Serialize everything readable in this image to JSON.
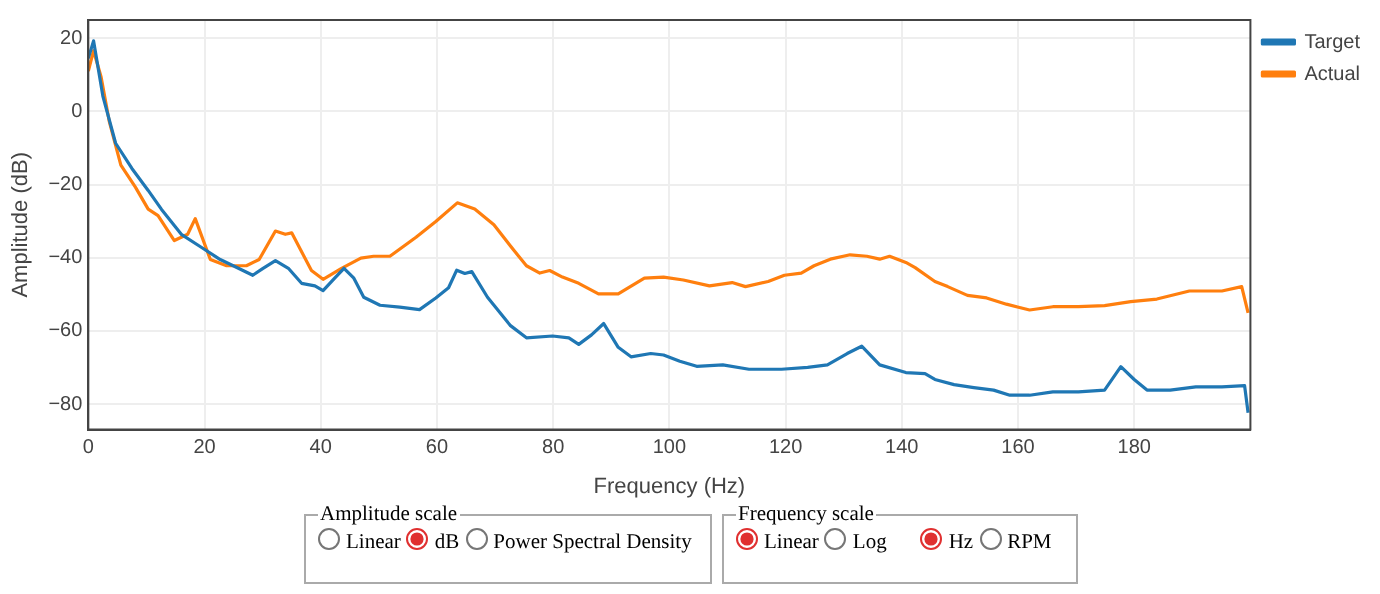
{
  "chart_data": {
    "type": "line",
    "xlabel": "Frequency (Hz)",
    "ylabel": "Amplitude (dB)",
    "xlim": [
      0,
      200
    ],
    "xticks": [
      0,
      20,
      40,
      60,
      80,
      100,
      120,
      140,
      160,
      180
    ],
    "ylim": [
      -87,
      25
    ],
    "yticks": [
      {
        "value": -80,
        "label": "−80"
      },
      {
        "value": -60,
        "label": "−60"
      },
      {
        "value": -40,
        "label": "−40"
      },
      {
        "value": -20,
        "label": "−20"
      },
      0,
      20
    ],
    "grid": true,
    "legend": "top right",
    "marker": "none",
    "line_style": "solid",
    "series": [
      {
        "name": "Target",
        "color": "#1f77b4",
        "x": [
          0,
          0.9,
          2.5,
          4.7,
          7.5,
          10.3,
          12.6,
          16,
          19.3,
          22.7,
          26,
          28.3,
          30,
          32.2,
          34.5,
          36.7,
          39,
          40.4,
          42.4,
          44,
          45.7,
          47.4,
          50.2,
          53.6,
          57,
          59.8,
          62,
          63.4,
          64.8,
          66,
          68.7,
          72.6,
          75.4,
          79.9,
          82.7,
          84.4,
          86.6,
          88.7,
          91.2,
          93.4,
          96.8,
          99,
          101.8,
          104.7,
          109.2,
          113.7,
          119.3,
          123.8,
          127.2,
          130.6,
          133.1,
          136.2,
          140.7,
          144,
          145.7,
          149,
          152.4,
          155.8,
          158.6,
          162,
          166,
          170.4,
          174.9,
          177.7,
          180,
          182.2,
          186.2,
          190.6,
          195.1,
          199,
          199.6
        ],
        "values": [
          14.5,
          19.3,
          4.2,
          -8.7,
          -15.6,
          -21.6,
          -26.8,
          -33.6,
          -37,
          -40.5,
          -43,
          -44.8,
          -43,
          -40.8,
          -43,
          -47,
          -47.7,
          -49,
          -45.6,
          -42.9,
          -45.6,
          -50.8,
          -53,
          -53.5,
          -54.2,
          -51,
          -48.2,
          -43.4,
          -44.3,
          -43.8,
          -50.8,
          -58.5,
          -61.9,
          -61.4,
          -61.9,
          -63.7,
          -61.1,
          -58,
          -64.5,
          -67.1,
          -66.2,
          -66.6,
          -68.3,
          -69.7,
          -69.3,
          -70.5,
          -70.5,
          -70,
          -69.3,
          -66.2,
          -64.2,
          -69.3,
          -71.4,
          -71.7,
          -73.3,
          -74.7,
          -75.5,
          -76.2,
          -77.6,
          -77.6,
          -76.7,
          -76.7,
          -76.2,
          -69.8,
          -73.3,
          -76.2,
          -76.2,
          -75.3,
          -75.3,
          -75,
          -82.4
        ]
      },
      {
        "name": "Actual",
        "color": "#ff7f0e",
        "x": [
          0,
          0.9,
          2.2,
          3.6,
          5.6,
          8.1,
          10.3,
          12,
          14.8,
          17.1,
          18.4,
          21,
          23.8,
          27.2,
          29.4,
          32.2,
          33.9,
          35,
          38.4,
          40.4,
          43.5,
          46.9,
          49.1,
          51.9,
          56.4,
          59.8,
          63.5,
          66.5,
          69.8,
          73.2,
          75.4,
          77.7,
          79.4,
          81.6,
          84.4,
          87.8,
          91.2,
          95.7,
          99,
          102.4,
          106.9,
          110.8,
          113.1,
          117,
          119.8,
          122.7,
          124.9,
          127.7,
          131.1,
          134,
          136.2,
          137.9,
          140.7,
          142.3,
          145.7,
          147.9,
          151.3,
          154.6,
          158,
          162,
          166,
          170.4,
          174.9,
          179.4,
          183.9,
          189.5,
          195.1,
          198.5,
          199.6
        ],
        "values": [
          11,
          16.6,
          9.4,
          -2.7,
          -14.7,
          -20.7,
          -26.7,
          -28.5,
          -35.3,
          -33.6,
          -29.3,
          -40.5,
          -42.2,
          -42.2,
          -40.5,
          -32.7,
          -33.6,
          -33.2,
          -43.5,
          -45.9,
          -43,
          -40.1,
          -39.6,
          -39.6,
          -34.4,
          -30.1,
          -25,
          -26.7,
          -31,
          -37.9,
          -42.2,
          -44.2,
          -43.5,
          -45.3,
          -47,
          -49.9,
          -49.9,
          -45.6,
          -45.3,
          -46.1,
          -47.7,
          -46.8,
          -47.9,
          -46.5,
          -44.8,
          -44.2,
          -42.2,
          -40.4,
          -39.2,
          -39.6,
          -40.4,
          -39.6,
          -41.3,
          -42.7,
          -46.5,
          -47.9,
          -50.3,
          -51,
          -52.7,
          -54.3,
          -53.4,
          -53.4,
          -53.1,
          -52,
          -51.3,
          -49.1,
          -49.1,
          -47.9,
          -55.1
        ]
      }
    ],
    "annotations": [
      "Amplitude scale",
      "Linear",
      "dB",
      "Power Spectral Density",
      "Frequency scale",
      "Linear",
      "Log",
      "Hz",
      "RPM"
    ]
  }
}
